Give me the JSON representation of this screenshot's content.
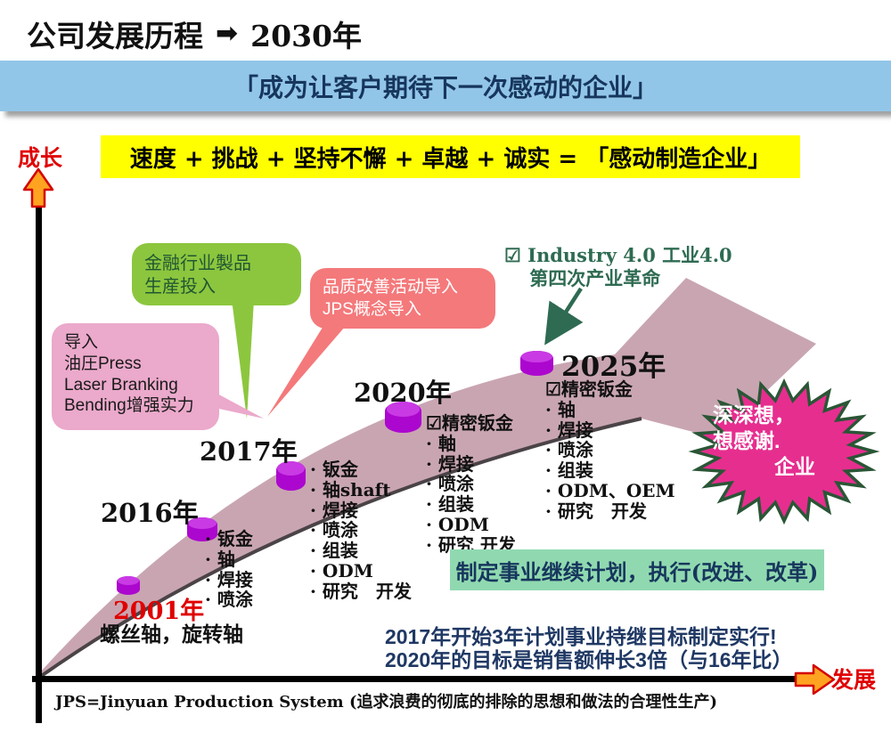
{
  "header": {
    "title_left": "公司发展历程",
    "arrow_glyph": "➡",
    "title_right": "2030年"
  },
  "banners": {
    "vision": "「成为让客户期待下一次感动的企业」",
    "formula": "速度 + 挑战 + 坚持不懈 + 卓越 + 诚实 = 「感动制造企业」",
    "plan": "制定事业继续计划，执行(改进、改革)"
  },
  "axes": {
    "y_label": "成长",
    "x_label": "发展"
  },
  "callouts": {
    "green": "金融行业製品\n生産投入",
    "salmon": "品质改善活动导入\nJPS概念导入",
    "pink": "导入\n油圧Press\nLaser Branking\nBending增强实力"
  },
  "industry_note": "☑ Industry 4.0 工业4.0\n　 第四次产业革命",
  "milestones": [
    {
      "year": "2001年",
      "items": "螺丝轴，旋转轴"
    },
    {
      "year": "2016年",
      "items": "· 钣金\n· 轴\n· 焊接\n· 喷涂"
    },
    {
      "year": "2017年",
      "items": "· 钣金\n· 轴shaft\n· 焊接\n· 喷涂\n· 组装\n· ODM\n· 研究　开发"
    },
    {
      "year": "2020年",
      "items": "☑精密钣金\n· 軸\n· 焊接\n· 喷涂\n· 组装\n· ODM\n· 研究 开发"
    },
    {
      "year": "2025年",
      "items": "☑精密钣金\n· 轴\n· 焊接\n· 喷涂\n· 组装\n· ODM、OEM\n· 研究　开发"
    }
  ],
  "starburst_text": "深深想，\n想感谢.\n　　　企业",
  "goal_note": "2017年开始3年计划事业持继目标制定实行!\n2020年的目标是销售额伸长3倍（与16年比）",
  "footer": "JPS=Jinyuan Production System (追求浪费的彻底的排除的思想和做法的合理性生产)",
  "colors": {
    "banner_blue": "#92C6E8",
    "banner_yellow": "#FFFF00",
    "band_mauve": "#C9A5B2",
    "cylinder_magenta": "#AC07CE",
    "green_callout": "#8CC63E",
    "salmon_callout": "#F4797B",
    "pink_callout": "#EBA9CB",
    "starburst_pink": "#E62E8F",
    "mint_banner": "#90D9B0",
    "navy_text": "#17365D",
    "red_accent": "#E00000",
    "orange_arrow": "#FFA321",
    "dark_green": "#2E6B52"
  }
}
